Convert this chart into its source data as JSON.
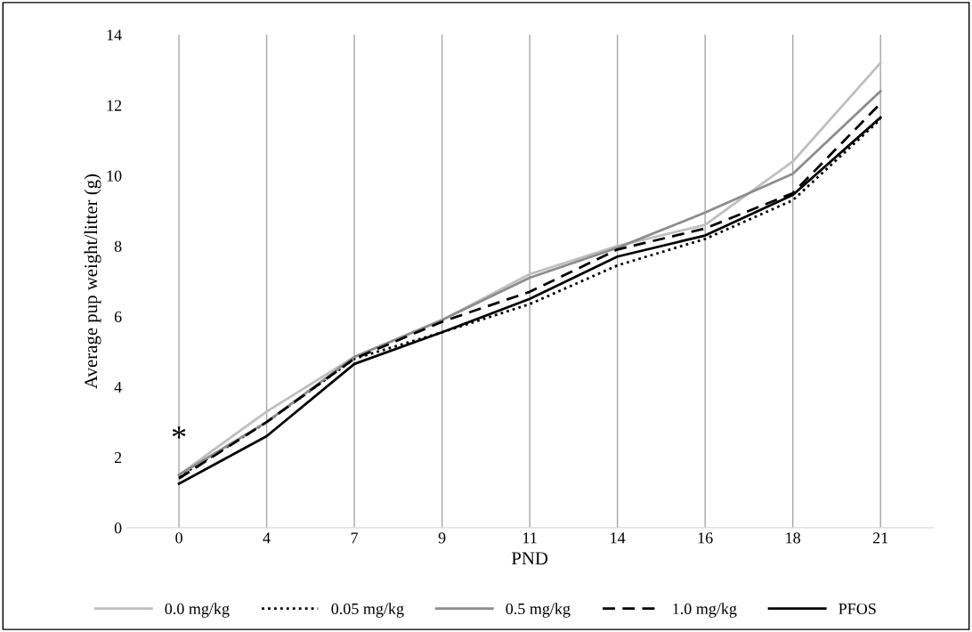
{
  "chart_data": {
    "type": "line",
    "xlabel": "PND",
    "ylabel": "Average pup weight/litter (g)",
    "categories": [
      "0",
      "4",
      "7",
      "9",
      "11",
      "14",
      "16",
      "18",
      "21"
    ],
    "series": [
      {
        "name": "0.0 mg/kg",
        "color": "#bfbfbf",
        "line_style": "solid",
        "values": [
          1.5,
          3.3,
          4.85,
          5.9,
          7.2,
          8.0,
          8.6,
          10.4,
          13.2
        ]
      },
      {
        "name": "0.05 mg/kg",
        "color": "#000000",
        "line_style": "dotted",
        "values": [
          1.45,
          3.0,
          4.8,
          5.55,
          6.35,
          7.45,
          8.2,
          9.3,
          11.6
        ]
      },
      {
        "name": "0.5 mg/kg",
        "color": "#8c8c8c",
        "line_style": "solid",
        "values": [
          1.5,
          3.0,
          4.85,
          5.9,
          7.1,
          7.95,
          8.95,
          10.05,
          12.4
        ]
      },
      {
        "name": "1.0 mg/kg",
        "color": "#000000",
        "line_style": "dashed",
        "values": [
          1.4,
          3.0,
          4.8,
          5.85,
          6.7,
          7.9,
          8.5,
          9.5,
          12.05
        ]
      },
      {
        "name": "PFOS",
        "color": "#000000",
        "line_style": "solid",
        "values": [
          1.25,
          2.6,
          4.65,
          5.55,
          6.5,
          7.7,
          8.3,
          9.45,
          11.65
        ]
      }
    ],
    "ylim": [
      0,
      14
    ],
    "yticks": [
      0,
      2,
      4,
      6,
      8,
      10,
      12,
      14
    ],
    "grid": "x",
    "legend": "bottom",
    "marker": "none",
    "annotations": [
      "*"
    ]
  }
}
